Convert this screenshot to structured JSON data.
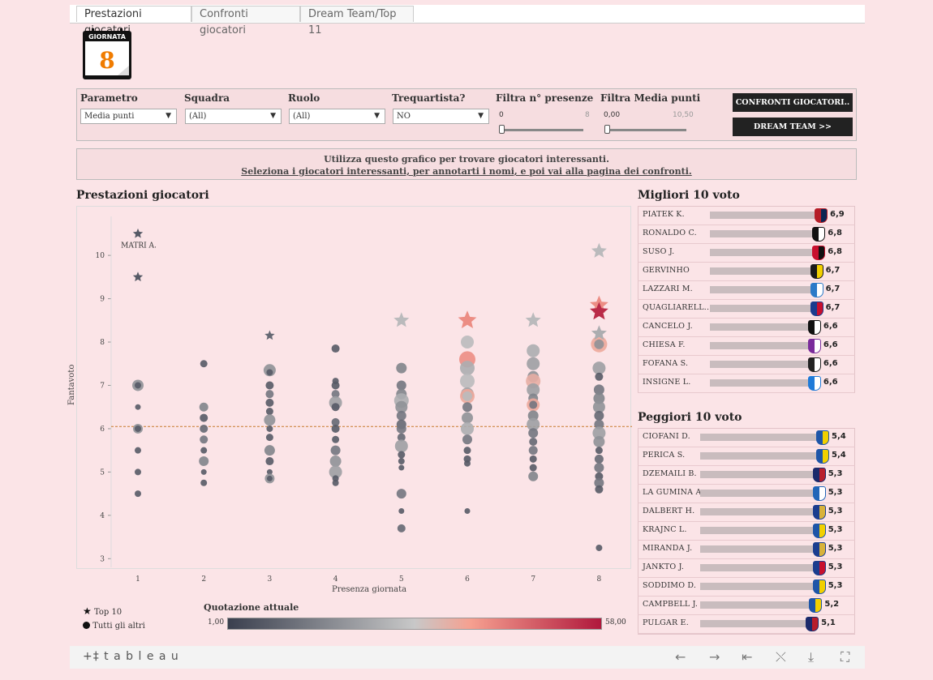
{
  "tabs": [
    "Prestazioni giocatori",
    "Confronti giocatori",
    "Dream Team/Top 11"
  ],
  "calendar": {
    "header": "GIORNATA",
    "number": "8"
  },
  "filters": {
    "parametro": {
      "label": "Parametro",
      "value": "Media punti"
    },
    "squadra": {
      "label": "Squadra",
      "value": "(All)"
    },
    "ruolo": {
      "label": "Ruolo",
      "value": "(All)"
    },
    "trequartista": {
      "label": "Trequartista?",
      "value": "NO"
    },
    "presenze": {
      "label": "Filtra n° presenze",
      "min": "0",
      "max": "8",
      "level": 0
    },
    "media": {
      "label": "Filtra Media punti",
      "min": "0,00",
      "max": "10,50",
      "level": 0
    }
  },
  "buttons": {
    "confronti": "CONFRONTI GIOCATORI..",
    "dreamteam": "DREAM TEAM >>"
  },
  "info": {
    "line1": "Utilizza questo grafico per trovare giocatori interessanti.",
    "line2": "Seleziona i giocatori interessanti, per annotarti i nomi, e poi vai alla pagina dei confronti."
  },
  "chart_title": "Prestazioni giocatori",
  "chart_data": {
    "type": "scatter",
    "title": "Prestazioni giocatori",
    "xlabel": "Presenza giornata",
    "ylabel": "Fantavoto",
    "x_ticks": [
      "1",
      "2",
      "3",
      "4",
      "5",
      "6",
      "7",
      "8"
    ],
    "y_ticks": [
      "3",
      "4",
      "5",
      "6",
      "7",
      "8",
      "9",
      "10"
    ],
    "ylim": [
      2.8,
      10.9
    ],
    "reference_line": 6.05,
    "annotation": {
      "text": "MATRI A.",
      "x": 1,
      "y": 10.5
    },
    "stars": [
      {
        "x": 1,
        "y": 10.5,
        "c": 0.1
      },
      {
        "x": 1,
        "y": 9.5,
        "c": 0.1
      },
      {
        "x": 3,
        "y": 8.15,
        "c": 0.15
      },
      {
        "x": 5,
        "y": 8.5,
        "c": 0.45
      },
      {
        "x": 6,
        "y": 8.5,
        "c": 0.7
      },
      {
        "x": 7,
        "y": 8.5,
        "c": 0.45
      },
      {
        "x": 8,
        "y": 10.1,
        "c": 0.45
      },
      {
        "x": 8,
        "y": 8.85,
        "c": 0.7
      },
      {
        "x": 8,
        "y": 8.7,
        "c": 0.95
      },
      {
        "x": 8,
        "y": 8.2,
        "c": 0.4
      }
    ],
    "points": [
      {
        "x": 1,
        "y": 7.0,
        "c": 0.3,
        "s": 7
      },
      {
        "x": 1,
        "y": 7.0,
        "c": 0.1,
        "s": 4
      },
      {
        "x": 1,
        "y": 6.5,
        "c": 0.1,
        "s": 3.5
      },
      {
        "x": 1,
        "y": 6.0,
        "c": 0.3,
        "s": 6
      },
      {
        "x": 1,
        "y": 6.0,
        "c": 0.1,
        "s": 4
      },
      {
        "x": 1,
        "y": 5.5,
        "c": 0.1,
        "s": 4
      },
      {
        "x": 1,
        "y": 5.0,
        "c": 0.1,
        "s": 4
      },
      {
        "x": 1,
        "y": 4.5,
        "c": 0.1,
        "s": 4
      },
      {
        "x": 2,
        "y": 7.5,
        "c": 0.1,
        "s": 4.5
      },
      {
        "x": 2,
        "y": 6.5,
        "c": 0.25,
        "s": 5.5
      },
      {
        "x": 2,
        "y": 6.25,
        "c": 0.1,
        "s": 5
      },
      {
        "x": 2,
        "y": 6.0,
        "c": 0.15,
        "s": 5
      },
      {
        "x": 2,
        "y": 5.75,
        "c": 0.2,
        "s": 5
      },
      {
        "x": 2,
        "y": 5.5,
        "c": 0.1,
        "s": 4
      },
      {
        "x": 2,
        "y": 5.25,
        "c": 0.25,
        "s": 6
      },
      {
        "x": 2,
        "y": 5.0,
        "c": 0.1,
        "s": 3.5
      },
      {
        "x": 2,
        "y": 4.75,
        "c": 0.1,
        "s": 4
      },
      {
        "x": 3,
        "y": 7.35,
        "c": 0.3,
        "s": 7.5
      },
      {
        "x": 3,
        "y": 7.3,
        "c": 0.1,
        "s": 4
      },
      {
        "x": 3,
        "y": 7.0,
        "c": 0.1,
        "s": 5
      },
      {
        "x": 3,
        "y": 6.8,
        "c": 0.2,
        "s": 5
      },
      {
        "x": 3,
        "y": 6.6,
        "c": 0.1,
        "s": 5
      },
      {
        "x": 3,
        "y": 6.4,
        "c": 0.1,
        "s": 4.5
      },
      {
        "x": 3,
        "y": 6.2,
        "c": 0.3,
        "s": 7
      },
      {
        "x": 3,
        "y": 6.0,
        "c": 0.1,
        "s": 4
      },
      {
        "x": 3,
        "y": 5.8,
        "c": 0.1,
        "s": 4.5
      },
      {
        "x": 3,
        "y": 5.5,
        "c": 0.25,
        "s": 6.5
      },
      {
        "x": 3,
        "y": 5.25,
        "c": 0.1,
        "s": 5
      },
      {
        "x": 3,
        "y": 5.0,
        "c": 0.1,
        "s": 3.5
      },
      {
        "x": 3,
        "y": 4.85,
        "c": 0.3,
        "s": 6
      },
      {
        "x": 3,
        "y": 4.85,
        "c": 0.1,
        "s": 3.5
      },
      {
        "x": 4,
        "y": 7.85,
        "c": 0.1,
        "s": 5
      },
      {
        "x": 4,
        "y": 7.1,
        "c": 0.1,
        "s": 4
      },
      {
        "x": 4,
        "y": 7.0,
        "c": 0.1,
        "s": 5
      },
      {
        "x": 4,
        "y": 6.8,
        "c": 0.2,
        "s": 5
      },
      {
        "x": 4,
        "y": 6.6,
        "c": 0.35,
        "s": 8
      },
      {
        "x": 4,
        "y": 6.5,
        "c": 0.1,
        "s": 5
      },
      {
        "x": 4,
        "y": 6.15,
        "c": 0.15,
        "s": 5
      },
      {
        "x": 4,
        "y": 6.0,
        "c": 0.1,
        "s": 5
      },
      {
        "x": 4,
        "y": 5.75,
        "c": 0.1,
        "s": 4.5
      },
      {
        "x": 4,
        "y": 5.5,
        "c": 0.2,
        "s": 6
      },
      {
        "x": 4,
        "y": 5.25,
        "c": 0.3,
        "s": 7
      },
      {
        "x": 4,
        "y": 5.0,
        "c": 0.35,
        "s": 8
      },
      {
        "x": 4,
        "y": 4.85,
        "c": 0.1,
        "s": 4
      },
      {
        "x": 4,
        "y": 4.75,
        "c": 0.1,
        "s": 4
      },
      {
        "x": 5,
        "y": 7.4,
        "c": 0.25,
        "s": 6.5
      },
      {
        "x": 5,
        "y": 7.0,
        "c": 0.2,
        "s": 6
      },
      {
        "x": 5,
        "y": 6.8,
        "c": 0.25,
        "s": 6.5
      },
      {
        "x": 5,
        "y": 6.65,
        "c": 0.4,
        "s": 9
      },
      {
        "x": 5,
        "y": 6.5,
        "c": 0.3,
        "s": 7.5
      },
      {
        "x": 5,
        "y": 6.3,
        "c": 0.2,
        "s": 6
      },
      {
        "x": 5,
        "y": 6.1,
        "c": 0.15,
        "s": 6
      },
      {
        "x": 5,
        "y": 6.0,
        "c": 0.2,
        "s": 6
      },
      {
        "x": 5,
        "y": 5.8,
        "c": 0.15,
        "s": 5
      },
      {
        "x": 5,
        "y": 5.6,
        "c": 0.35,
        "s": 8
      },
      {
        "x": 5,
        "y": 5.4,
        "c": 0.1,
        "s": 4.5
      },
      {
        "x": 5,
        "y": 5.25,
        "c": 0.1,
        "s": 4
      },
      {
        "x": 5,
        "y": 5.1,
        "c": 0.1,
        "s": 3.5
      },
      {
        "x": 5,
        "y": 4.5,
        "c": 0.2,
        "s": 6
      },
      {
        "x": 5,
        "y": 4.1,
        "c": 0.1,
        "s": 3.5
      },
      {
        "x": 5,
        "y": 3.7,
        "c": 0.15,
        "s": 5
      },
      {
        "x": 6,
        "y": 8.0,
        "c": 0.45,
        "s": 8
      },
      {
        "x": 6,
        "y": 7.6,
        "c": 0.7,
        "s": 10
      },
      {
        "x": 6,
        "y": 7.4,
        "c": 0.4,
        "s": 9
      },
      {
        "x": 6,
        "y": 7.1,
        "c": 0.45,
        "s": 9
      },
      {
        "x": 6,
        "y": 6.8,
        "c": 0.35,
        "s": 8
      },
      {
        "x": 6,
        "y": 6.75,
        "c": 0.62,
        "s": 9
      },
      {
        "x": 6,
        "y": 6.75,
        "c": 0.45,
        "s": 6
      },
      {
        "x": 6,
        "y": 6.5,
        "c": 0.2,
        "s": 6
      },
      {
        "x": 6,
        "y": 6.25,
        "c": 0.3,
        "s": 7
      },
      {
        "x": 6,
        "y": 6.0,
        "c": 0.4,
        "s": 8
      },
      {
        "x": 6,
        "y": 5.75,
        "c": 0.2,
        "s": 6
      },
      {
        "x": 6,
        "y": 5.5,
        "c": 0.1,
        "s": 4.5
      },
      {
        "x": 6,
        "y": 5.3,
        "c": 0.1,
        "s": 4.5
      },
      {
        "x": 6,
        "y": 5.2,
        "c": 0.1,
        "s": 4
      },
      {
        "x": 6,
        "y": 4.1,
        "c": 0.1,
        "s": 3.5
      },
      {
        "x": 7,
        "y": 7.8,
        "c": 0.4,
        "s": 8
      },
      {
        "x": 7,
        "y": 7.5,
        "c": 0.35,
        "s": 8
      },
      {
        "x": 7,
        "y": 7.2,
        "c": 0.3,
        "s": 7
      },
      {
        "x": 7,
        "y": 7.1,
        "c": 0.6,
        "s": 9
      },
      {
        "x": 7,
        "y": 6.9,
        "c": 0.35,
        "s": 8
      },
      {
        "x": 7,
        "y": 6.7,
        "c": 0.25,
        "s": 6
      },
      {
        "x": 7,
        "y": 6.55,
        "c": 0.62,
        "s": 8
      },
      {
        "x": 7,
        "y": 6.55,
        "c": 0.2,
        "s": 5
      },
      {
        "x": 7,
        "y": 6.3,
        "c": 0.25,
        "s": 6.5
      },
      {
        "x": 7,
        "y": 6.1,
        "c": 0.35,
        "s": 8
      },
      {
        "x": 7,
        "y": 5.9,
        "c": 0.2,
        "s": 6
      },
      {
        "x": 7,
        "y": 5.7,
        "c": 0.15,
        "s": 5
      },
      {
        "x": 7,
        "y": 5.5,
        "c": 0.2,
        "s": 5.5
      },
      {
        "x": 7,
        "y": 5.3,
        "c": 0.1,
        "s": 4.5
      },
      {
        "x": 7,
        "y": 5.1,
        "c": 0.1,
        "s": 4.5
      },
      {
        "x": 7,
        "y": 4.9,
        "c": 0.25,
        "s": 6
      },
      {
        "x": 8,
        "y": 7.95,
        "c": 0.62,
        "s": 10
      },
      {
        "x": 8,
        "y": 7.95,
        "c": 0.3,
        "s": 6
      },
      {
        "x": 8,
        "y": 7.4,
        "c": 0.35,
        "s": 8
      },
      {
        "x": 8,
        "y": 7.2,
        "c": 0.1,
        "s": 5
      },
      {
        "x": 8,
        "y": 6.9,
        "c": 0.2,
        "s": 6.5
      },
      {
        "x": 8,
        "y": 6.7,
        "c": 0.25,
        "s": 7
      },
      {
        "x": 8,
        "y": 6.5,
        "c": 0.3,
        "s": 7.5
      },
      {
        "x": 8,
        "y": 6.3,
        "c": 0.15,
        "s": 6
      },
      {
        "x": 8,
        "y": 6.1,
        "c": 0.2,
        "s": 6
      },
      {
        "x": 8,
        "y": 5.9,
        "c": 0.35,
        "s": 8
      },
      {
        "x": 8,
        "y": 5.7,
        "c": 0.3,
        "s": 7
      },
      {
        "x": 8,
        "y": 5.5,
        "c": 0.1,
        "s": 4.5
      },
      {
        "x": 8,
        "y": 5.3,
        "c": 0.15,
        "s": 5.5
      },
      {
        "x": 8,
        "y": 5.1,
        "c": 0.2,
        "s": 6
      },
      {
        "x": 8,
        "y": 4.9,
        "c": 0.1,
        "s": 5
      },
      {
        "x": 8,
        "y": 4.75,
        "c": 0.2,
        "s": 6
      },
      {
        "x": 8,
        "y": 4.6,
        "c": 0.1,
        "s": 5
      },
      {
        "x": 8,
        "y": 3.25,
        "c": 0.1,
        "s": 4
      }
    ],
    "color_scale": {
      "title": "Quotazione attuale",
      "min": "1,00",
      "max": "58,00",
      "colors": [
        "#3a3f4e",
        "#c8c8c8",
        "#f6a090",
        "#b0183c"
      ]
    },
    "legend": {
      "star": "Top 10",
      "dot": "Tutti gli altri"
    }
  },
  "best": {
    "title": "Migliori 10 voto",
    "rows": [
      {
        "name": "PIATEK K.",
        "value": "6,9",
        "v": 6.9,
        "crest": "#b51e28",
        "crest2": "#0b2452"
      },
      {
        "name": "RONALDO C.",
        "value": "6,8",
        "v": 6.8,
        "crest": "#111111",
        "crest2": "#ffffff"
      },
      {
        "name": "SUSO J.",
        "value": "6,8",
        "v": 6.8,
        "crest": "#c8102e",
        "crest2": "#111111"
      },
      {
        "name": "GERVINHO",
        "value": "6,7",
        "v": 6.7,
        "crest": "#1a1a1a",
        "crest2": "#f2d000"
      },
      {
        "name": "LAZZARI M.",
        "value": "6,7",
        "v": 6.7,
        "crest": "#2b7ac8",
        "crest2": "#ffffff"
      },
      {
        "name": "QUAGLIARELL..",
        "value": "6,7",
        "v": 6.7,
        "crest": "#1b3c8e",
        "crest2": "#c8102e"
      },
      {
        "name": "CANCELO J.",
        "value": "6,6",
        "v": 6.6,
        "crest": "#111111",
        "crest2": "#ffffff"
      },
      {
        "name": "CHIESA F.",
        "value": "6,6",
        "v": 6.6,
        "crest": "#7a2c9b",
        "crest2": "#ffffff"
      },
      {
        "name": "FOFANA S.",
        "value": "6,6",
        "v": 6.6,
        "crest": "#222222",
        "crest2": "#ffffff"
      },
      {
        "name": "INSIGNE L.",
        "value": "6,6",
        "v": 6.6,
        "crest": "#1e7ad8",
        "crest2": "#ffffff"
      }
    ]
  },
  "worst": {
    "title": "Peggiori 10 voto",
    "rows": [
      {
        "name": "CIOFANI D.",
        "value": "5,4",
        "v": 5.4,
        "crest": "#1e55a8",
        "crest2": "#f2d000"
      },
      {
        "name": "PERICA S.",
        "value": "5,4",
        "v": 5.4,
        "crest": "#1e55a8",
        "crest2": "#f2d000"
      },
      {
        "name": "DZEMAILI B.",
        "value": "5,3",
        "v": 5.3,
        "crest": "#1b2a6b",
        "crest2": "#b81e2c"
      },
      {
        "name": "LA GUMINA A.",
        "value": "5,3",
        "v": 5.3,
        "crest": "#2266b8",
        "crest2": "#ffffff"
      },
      {
        "name": "DALBERT H.",
        "value": "5,3",
        "v": 5.3,
        "crest": "#1a3d8f",
        "crest2": "#d8b23a"
      },
      {
        "name": "KRAJNC L.",
        "value": "5,3",
        "v": 5.3,
        "crest": "#1e55a8",
        "crest2": "#f2d000"
      },
      {
        "name": "MIRANDA J.",
        "value": "5,3",
        "v": 5.3,
        "crest": "#1a3d8f",
        "crest2": "#d8b23a"
      },
      {
        "name": "JANKTO J.",
        "value": "5,3",
        "v": 5.3,
        "crest": "#1b3c8e",
        "crest2": "#c8102e"
      },
      {
        "name": "SODDIMO D.",
        "value": "5,3",
        "v": 5.3,
        "crest": "#1e55a8",
        "crest2": "#f2d000"
      },
      {
        "name": "CAMPBELL J.",
        "value": "5,2",
        "v": 5.2,
        "crest": "#1e55a8",
        "crest2": "#f2d000"
      },
      {
        "name": "PULGAR E.",
        "value": "5,1",
        "v": 5.1,
        "crest": "#1b2a6b",
        "crest2": "#b81e2c"
      }
    ]
  },
  "footer": {
    "brand": "+‡ t a b l e a u"
  }
}
